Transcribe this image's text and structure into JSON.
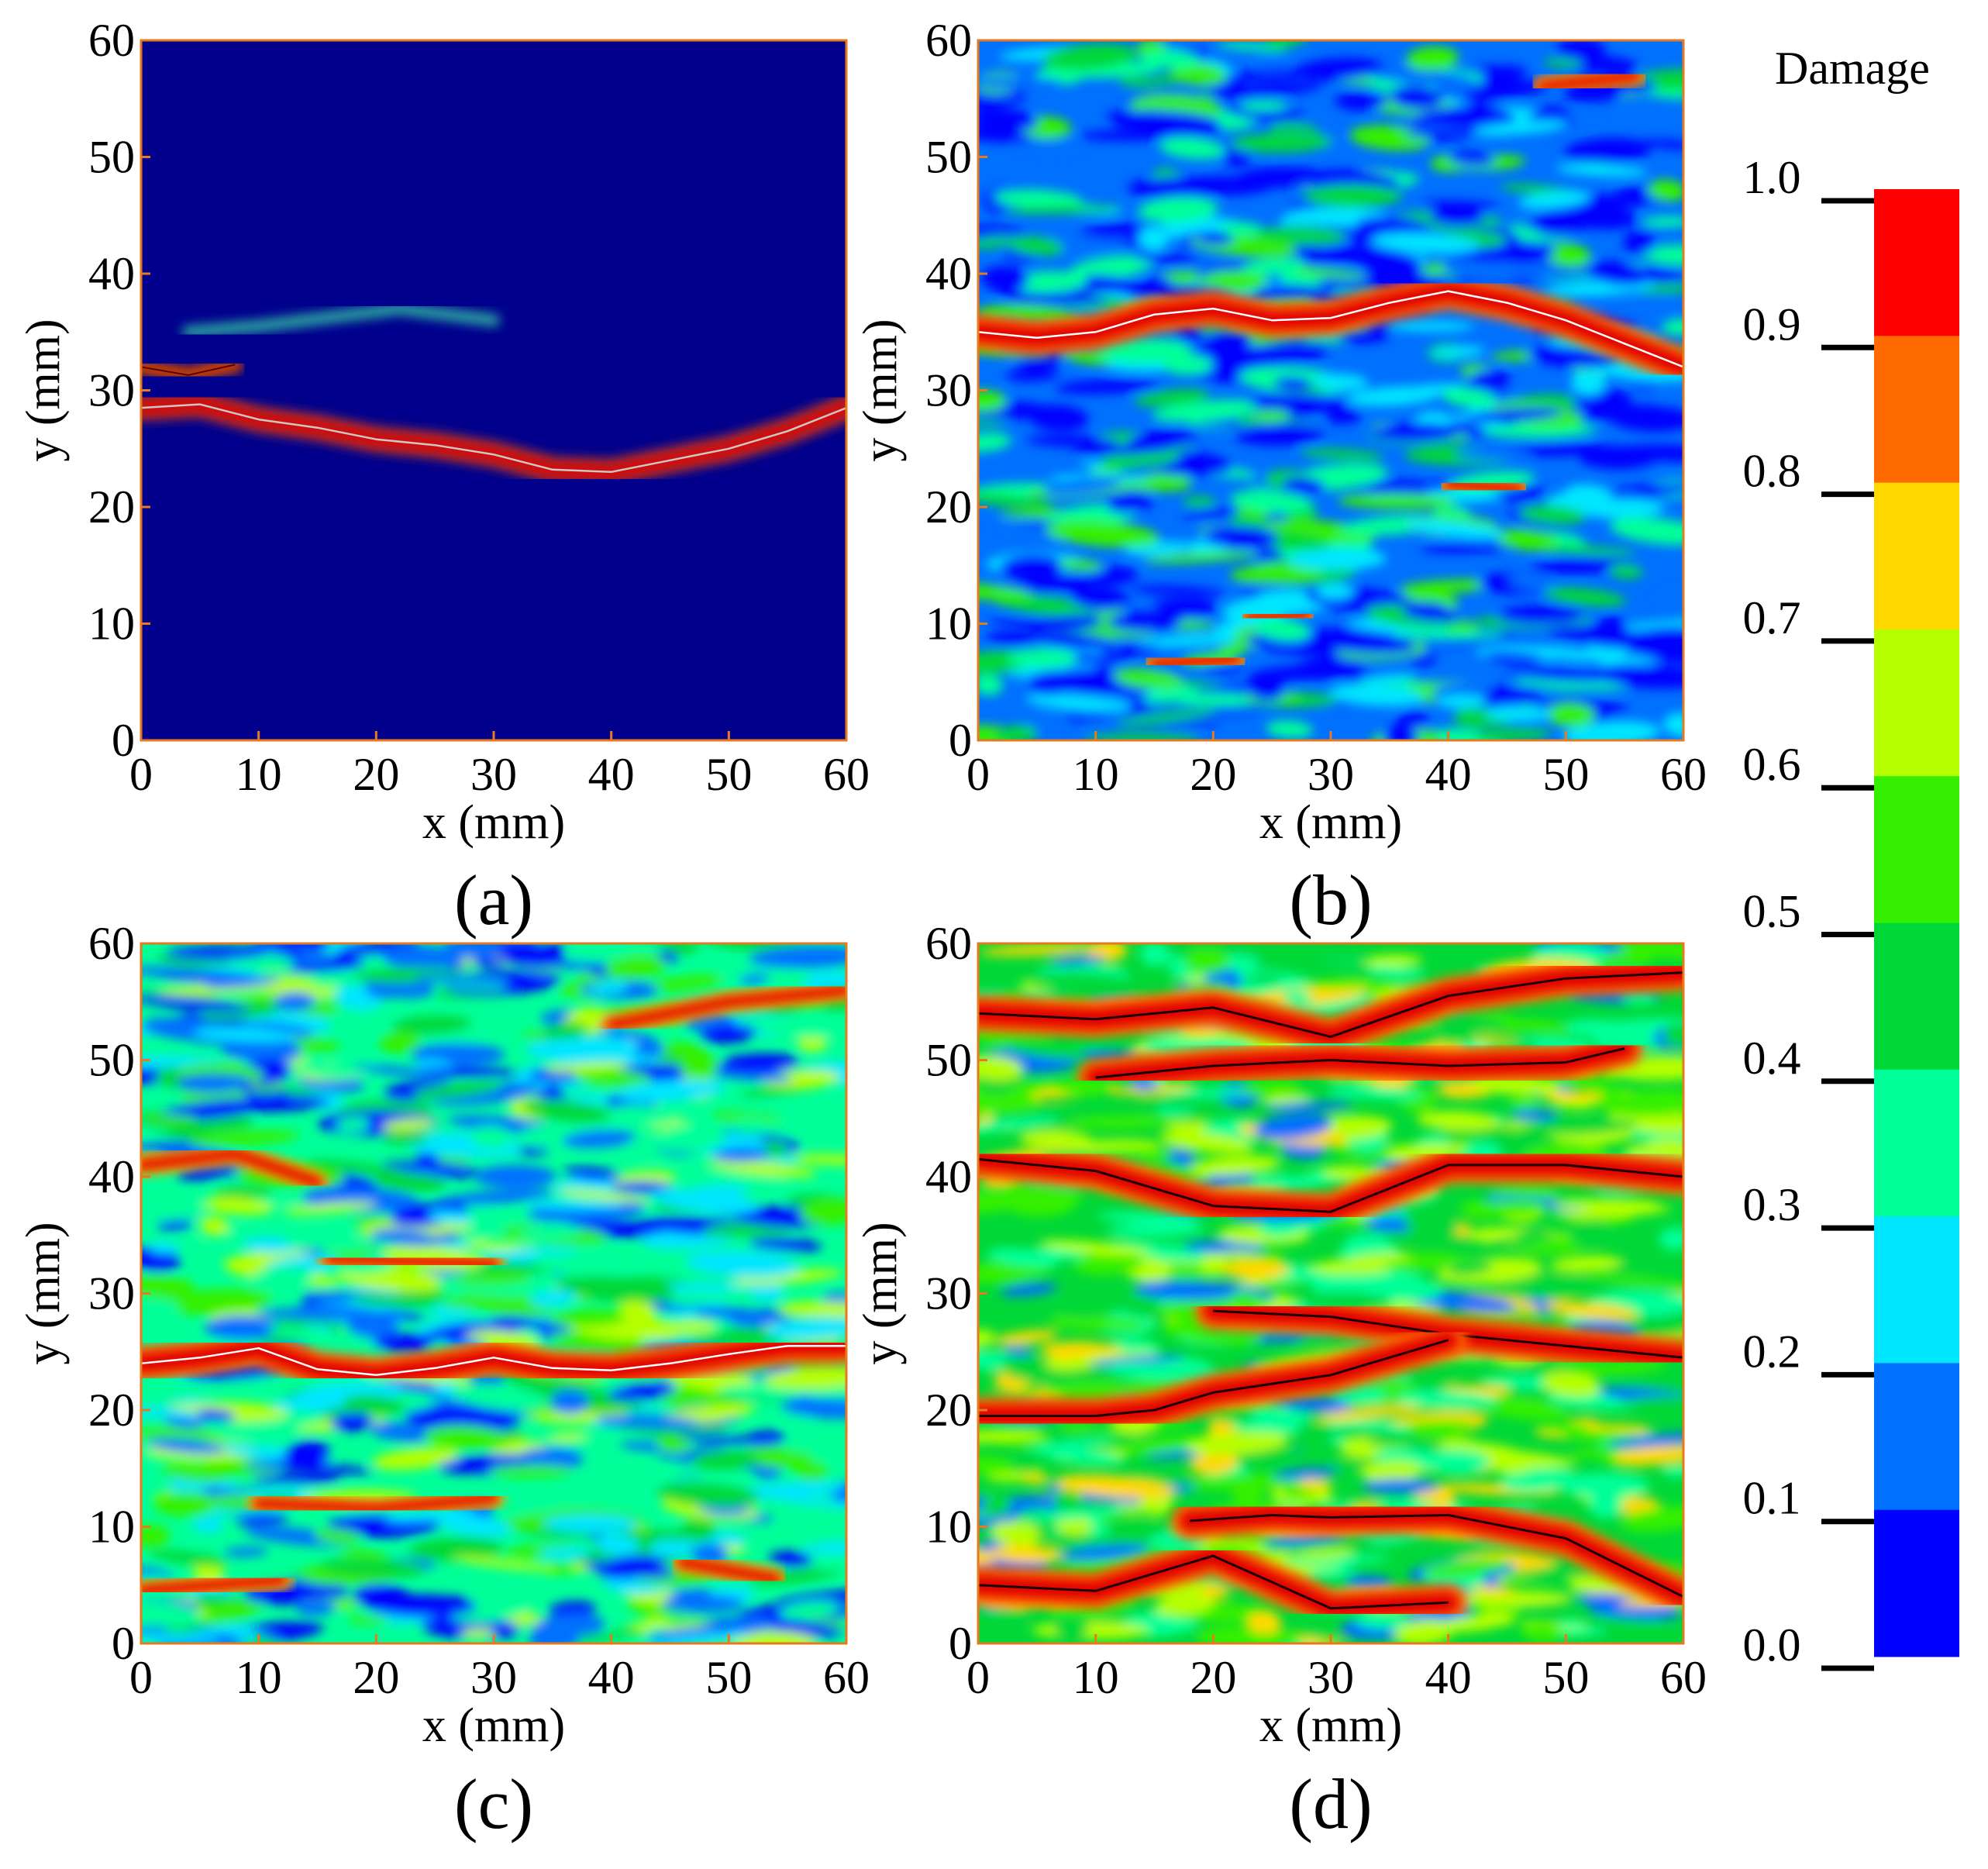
{
  "figure": {
    "panels": [
      {
        "id": "a",
        "label": "(a)"
      },
      {
        "id": "b",
        "label": "(b)"
      },
      {
        "id": "c",
        "label": "(c)"
      },
      {
        "id": "d",
        "label": "(d)"
      }
    ],
    "colorbar": {
      "title": "Damage",
      "ticks": [
        "1.0",
        "0.9",
        "0.8",
        "0.7",
        "0.6",
        "0.5",
        "0.4",
        "0.3",
        "0.2",
        "0.1",
        "0.0"
      ],
      "colors": [
        "#ff0000",
        "#ff6a00",
        "#ffd800",
        "#b6ff00",
        "#34f000",
        "#00d838",
        "#00ff99",
        "#00e6ff",
        "#0070ff",
        "#0000ff"
      ]
    }
  },
  "chart_data": [
    {
      "type": "heatmap",
      "panel": "(a)",
      "title": "",
      "xlabel": "x (mm)",
      "ylabel": "y (mm)",
      "xlim": [
        0,
        60
      ],
      "ylim": [
        0,
        60
      ],
      "xticks": [
        "0",
        "10",
        "20",
        "30",
        "40",
        "50",
        "60"
      ],
      "yticks": [
        "0",
        "10",
        "20",
        "30",
        "40",
        "50",
        "60"
      ],
      "background_damage": 0.0,
      "main_crack": {
        "x": [
          0,
          5,
          10,
          15,
          20,
          25,
          30,
          35,
          40,
          45,
          50,
          55,
          60
        ],
        "y": [
          28.5,
          28.8,
          27.5,
          26.8,
          25.8,
          25.3,
          24.5,
          23.2,
          23.0,
          24.0,
          25.0,
          26.5,
          28.5
        ]
      },
      "secondary_crack": {
        "x": [
          0,
          4,
          8
        ],
        "y": [
          32,
          31.3,
          32.2
        ]
      },
      "partial_damage_band": {
        "x": [
          4,
          10,
          18,
          22,
          30
        ],
        "y": [
          35,
          35.5,
          36.5,
          37,
          36
        ]
      }
    },
    {
      "type": "heatmap",
      "panel": "(b)",
      "title": "",
      "xlabel": "x (mm)",
      "ylabel": "y (mm)",
      "xlim": [
        0,
        60
      ],
      "ylim": [
        0,
        60
      ],
      "xticks": [
        "0",
        "10",
        "20",
        "30",
        "40",
        "50",
        "60"
      ],
      "yticks": [
        "0",
        "10",
        "20",
        "30",
        "40",
        "50",
        "60"
      ],
      "background_damage": 0.1,
      "main_crack": {
        "x": [
          0,
          5,
          10,
          15,
          20,
          25,
          30,
          35,
          40,
          45,
          50,
          55,
          60
        ],
        "y": [
          35,
          34.5,
          35,
          36.5,
          37,
          36,
          36.2,
          37.5,
          38.5,
          37.5,
          36,
          34,
          32
        ]
      },
      "red_bands": [
        {
          "x": [
            23,
            28
          ],
          "y": [
            10.5,
            10.8
          ]
        },
        {
          "x": [
            15,
            22
          ],
          "y": [
            6.5,
            7
          ]
        },
        {
          "x": [
            40,
            46
          ],
          "y": [
            22,
            21.5
          ]
        },
        {
          "x": [
            48,
            56
          ],
          "y": [
            56,
            57
          ]
        }
      ]
    },
    {
      "type": "heatmap",
      "panel": "(c)",
      "title": "",
      "xlabel": "x (mm)",
      "ylabel": "y (mm)",
      "xlim": [
        0,
        60
      ],
      "ylim": [
        0,
        60
      ],
      "xticks": [
        "0",
        "10",
        "20",
        "30",
        "40",
        "50",
        "60"
      ],
      "yticks": [
        "0",
        "10",
        "20",
        "30",
        "40",
        "50",
        "60"
      ],
      "background_damage": 0.3,
      "main_crack": {
        "x": [
          0,
          5,
          10,
          15,
          20,
          25,
          30,
          35,
          40,
          45,
          50,
          55,
          60
        ],
        "y": [
          24,
          24.5,
          25.3,
          23.5,
          23,
          23.6,
          24.5,
          23.6,
          23.4,
          24,
          24.8,
          25.5,
          25.5
        ]
      },
      "red_bands": [
        {
          "x": [
            0,
            8,
            15
          ],
          "y": [
            41,
            42,
            39.5
          ]
        },
        {
          "x": [
            16,
            30
          ],
          "y": [
            33,
            32.5
          ]
        },
        {
          "x": [
            40,
            50,
            60
          ],
          "y": [
            53,
            55,
            56
          ]
        },
        {
          "x": [
            10,
            20,
            30
          ],
          "y": [
            12,
            11.5,
            12.5
          ]
        },
        {
          "x": [
            46,
            54
          ],
          "y": [
            7,
            5.5
          ]
        },
        {
          "x": [
            0,
            12
          ],
          "y": [
            4.5,
            5.5
          ]
        }
      ]
    },
    {
      "type": "heatmap",
      "panel": "(d)",
      "title": "",
      "xlabel": "x (mm)",
      "ylabel": "y (mm)",
      "xlim": [
        0,
        60
      ],
      "ylim": [
        0,
        60
      ],
      "xticks": [
        "0",
        "10",
        "20",
        "30",
        "40",
        "50",
        "60"
      ],
      "yticks": [
        "0",
        "10",
        "20",
        "30",
        "40",
        "50",
        "60"
      ],
      "background_damage": 0.45,
      "crack_paths": [
        {
          "x": [
            0,
            10,
            20,
            30,
            40,
            50,
            60
          ],
          "y": [
            54,
            53.5,
            54.5,
            52,
            55.5,
            57,
            57.5
          ]
        },
        {
          "x": [
            10,
            20,
            30,
            40,
            50,
            55
          ],
          "y": [
            48.5,
            49.5,
            50,
            49.5,
            49.8,
            51
          ]
        },
        {
          "x": [
            0,
            10,
            20,
            30,
            40,
            50,
            60
          ],
          "y": [
            41.5,
            40.5,
            37.5,
            37,
            41,
            41,
            40
          ]
        },
        {
          "x": [
            20,
            30,
            40,
            50,
            60
          ],
          "y": [
            28.5,
            28,
            26.5,
            25.5,
            24.5
          ]
        },
        {
          "x": [
            0,
            10,
            15,
            20,
            30,
            40
          ],
          "y": [
            19.5,
            19.5,
            20,
            21.5,
            23,
            26
          ]
        },
        {
          "x": [
            18,
            25,
            30,
            40,
            50,
            60
          ],
          "y": [
            10.5,
            11,
            10.8,
            11,
            9,
            4
          ]
        },
        {
          "x": [
            0,
            10,
            20,
            30,
            40
          ],
          "y": [
            5,
            4.5,
            7.5,
            3,
            3.5
          ]
        }
      ]
    }
  ]
}
